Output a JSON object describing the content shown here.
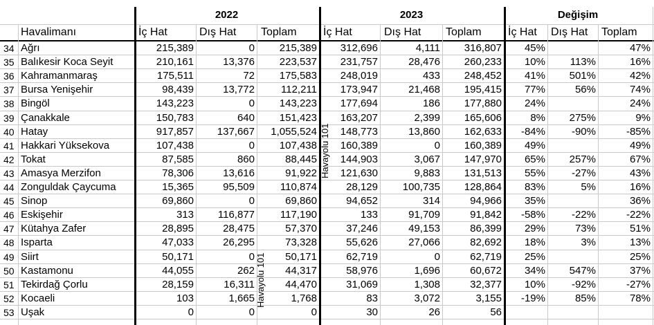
{
  "years": {
    "y2022": "2022",
    "y2023": "2023",
    "change": "Değişim"
  },
  "headers": {
    "airport": "Havalimanı",
    "domestic": "İç Hat",
    "international": "Dış Hat",
    "total": "Toplam"
  },
  "watermarks": [
    "Havayolu 101",
    "Havayolu 101"
  ],
  "rows": [
    [
      "34",
      "Ağrı",
      "215,389",
      "0",
      "215,389",
      "312,696",
      "4,111",
      "316,807",
      "45%",
      "",
      "47%"
    ],
    [
      "35",
      "Balıkesir Koca Seyit",
      "210,161",
      "13,376",
      "223,537",
      "231,757",
      "28,476",
      "260,233",
      "10%",
      "113%",
      "16%"
    ],
    [
      "36",
      "Kahramanmaraş",
      "175,511",
      "72",
      "175,583",
      "248,019",
      "433",
      "248,452",
      "41%",
      "501%",
      "42%"
    ],
    [
      "37",
      "Bursa Yenişehir",
      "98,439",
      "13,772",
      "112,211",
      "173,947",
      "21,468",
      "195,415",
      "77%",
      "56%",
      "74%"
    ],
    [
      "38",
      "Bingöl",
      "143,223",
      "0",
      "143,223",
      "177,694",
      "186",
      "177,880",
      "24%",
      "",
      "24%"
    ],
    [
      "39",
      "Çanakkale",
      "150,783",
      "640",
      "151,423",
      "163,207",
      "2,399",
      "165,606",
      "8%",
      "275%",
      "9%"
    ],
    [
      "40",
      "Hatay",
      "917,857",
      "137,667",
      "1,055,524",
      "148,773",
      "13,860",
      "162,633",
      "-84%",
      "-90%",
      "-85%"
    ],
    [
      "41",
      "Hakkari Yüksekova",
      "107,438",
      "0",
      "107,438",
      "160,389",
      "0",
      "160,389",
      "49%",
      "",
      "49%"
    ],
    [
      "42",
      "Tokat",
      "87,585",
      "860",
      "88,445",
      "144,903",
      "3,067",
      "147,970",
      "65%",
      "257%",
      "67%"
    ],
    [
      "43",
      "Amasya Merzifon",
      "78,306",
      "13,616",
      "91,922",
      "121,630",
      "9,883",
      "131,513",
      "55%",
      "-27%",
      "43%"
    ],
    [
      "44",
      "Zonguldak Çaycuma",
      "15,365",
      "95,509",
      "110,874",
      "28,129",
      "100,735",
      "128,864",
      "83%",
      "5%",
      "16%"
    ],
    [
      "45",
      "Sinop",
      "69,860",
      "0",
      "69,860",
      "94,652",
      "314",
      "94,966",
      "35%",
      "",
      "36%"
    ],
    [
      "46",
      "Eskişehir",
      "313",
      "116,877",
      "117,190",
      "133",
      "91,709",
      "91,842",
      "-58%",
      "-22%",
      "-22%"
    ],
    [
      "47",
      "Kütahya Zafer",
      "28,895",
      "28,475",
      "57,370",
      "37,246",
      "49,153",
      "86,399",
      "29%",
      "73%",
      "51%"
    ],
    [
      "48",
      "Isparta",
      "47,033",
      "26,295",
      "73,328",
      "55,626",
      "27,066",
      "82,692",
      "18%",
      "3%",
      "13%"
    ],
    [
      "49",
      "Siirt",
      "50,171",
      "0",
      "50,171",
      "62,719",
      "0",
      "62,719",
      "25%",
      "",
      "25%"
    ],
    [
      "50",
      "Kastamonu",
      "44,055",
      "262",
      "44,317",
      "58,976",
      "1,696",
      "60,672",
      "34%",
      "547%",
      "37%"
    ],
    [
      "51",
      "Tekirdağ Çorlu",
      "28,159",
      "16,311",
      "44,470",
      "31,069",
      "1,308",
      "32,377",
      "10%",
      "-92%",
      "-27%"
    ],
    [
      "52",
      "Kocaeli",
      "103",
      "1,665",
      "1,768",
      "83",
      "3,072",
      "3,155",
      "-19%",
      "85%",
      "78%"
    ],
    [
      "53",
      "Uşak",
      "0",
      "0",
      "0",
      "30",
      "26",
      "56",
      "",
      "",
      ""
    ]
  ]
}
